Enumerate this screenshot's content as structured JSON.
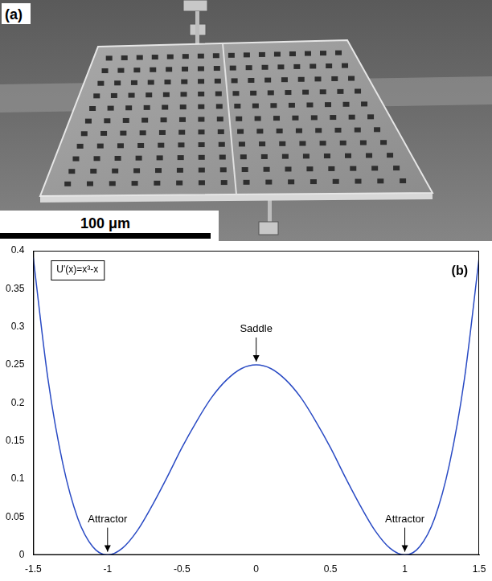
{
  "chart_data": {
    "type": "line",
    "x": [
      -1.5,
      -1.4,
      -1.3,
      -1.2,
      -1.1,
      -1.0,
      -0.9,
      -0.8,
      -0.7,
      -0.6,
      -0.5,
      -0.4,
      -0.3,
      -0.2,
      -0.1,
      0,
      0.1,
      0.2,
      0.3,
      0.4,
      0.5,
      0.6,
      0.7,
      0.8,
      0.9,
      1.0,
      1.1,
      1.2,
      1.3,
      1.4,
      1.5
    ],
    "series": [
      {
        "name": "U'(x)=x³-x",
        "color": "#2a4bc4",
        "line_style": "solid",
        "values": [
          0.391,
          0.23,
          0.119,
          0.048,
          0.011,
          0,
          0.009,
          0.032,
          0.065,
          0.102,
          0.141,
          0.176,
          0.207,
          0.23,
          0.245,
          0.25,
          0.245,
          0.23,
          0.207,
          0.176,
          0.141,
          0.102,
          0.065,
          0.032,
          0.009,
          0,
          0.011,
          0.048,
          0.119,
          0.23,
          0.391
        ]
      }
    ],
    "xlim": [
      -1.5,
      1.5
    ],
    "xticks": [
      -1.5,
      -1,
      -0.5,
      0,
      0.5,
      1,
      1.5
    ],
    "ylim": [
      0,
      0.4
    ],
    "yticks": [
      0,
      0.05,
      0.1,
      0.15,
      0.2,
      0.25,
      0.3,
      0.35,
      0.4
    ],
    "grid": false,
    "legend": "top-left",
    "annotations": [
      {
        "text": "Saddle",
        "x": 0,
        "y": 0.25
      },
      {
        "text": "Attractor",
        "x": -1,
        "y": 0
      },
      {
        "text": "Attractor",
        "x": 1,
        "y": 0
      }
    ],
    "panel_label": "(b)"
  },
  "photo": {
    "panel_label": "(a)",
    "scale_bar": "100 μm"
  }
}
